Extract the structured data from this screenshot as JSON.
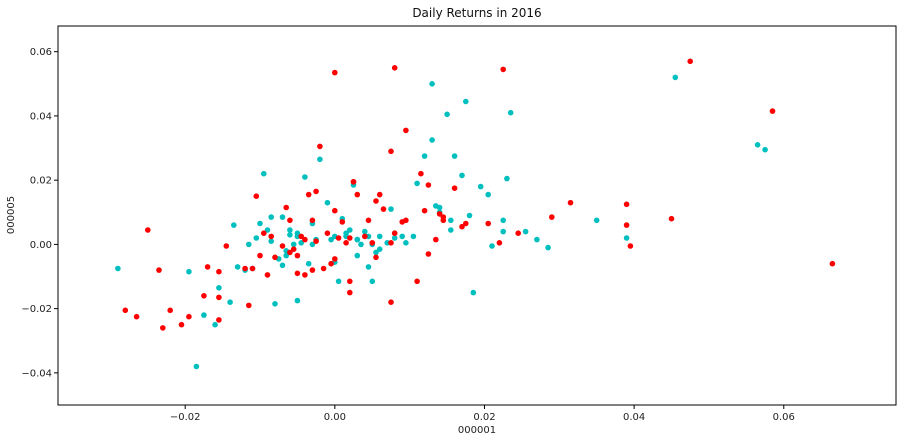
{
  "chart_data": {
    "type": "scatter",
    "title": "Daily Returns in 2016",
    "xlabel": "000001",
    "ylabel": "000005",
    "xlim": [
      -0.037,
      0.075
    ],
    "ylim": [
      -0.05,
      0.068
    ],
    "xticks": [
      -0.02,
      0.0,
      0.02,
      0.04,
      0.06
    ],
    "xtick_labels": [
      "−0.02",
      "0.00",
      "0.02",
      "0.04",
      "0.06"
    ],
    "yticks": [
      -0.04,
      -0.02,
      0.0,
      0.02,
      0.04,
      0.06
    ],
    "ytick_labels": [
      "−0.04",
      "−0.02",
      "0.00",
      "0.02",
      "0.04",
      "0.06"
    ],
    "grid": false,
    "series": [
      {
        "color": "#00bfbf",
        "x": [
          -0.029,
          -0.0195,
          -0.0185,
          -0.0175,
          -0.016,
          -0.0155,
          -0.014,
          -0.0135,
          -0.013,
          -0.012,
          -0.0115,
          -0.011,
          -0.0105,
          -0.01,
          -0.0095,
          -0.009,
          -0.0085,
          -0.008,
          -0.0075,
          -0.007,
          -0.007,
          -0.0065,
          -0.006,
          -0.0055,
          -0.005,
          -0.005,
          -0.0045,
          -0.004,
          -0.0035,
          -0.003,
          -0.0025,
          -0.002,
          -0.001,
          -0.0005,
          0.0,
          0.0,
          0.0005,
          0.001,
          0.0015,
          0.002,
          0.0025,
          0.003,
          0.003,
          0.0035,
          0.004,
          0.0045,
          0.005,
          0.005,
          0.0055,
          0.006,
          0.007,
          0.0075,
          0.008,
          0.009,
          0.0095,
          0.011,
          0.012,
          0.013,
          0.013,
          0.0135,
          0.014,
          0.015,
          0.0155,
          0.016,
          0.017,
          0.0175,
          0.018,
          0.0185,
          0.0195,
          0.021,
          0.0225,
          0.023,
          0.0235,
          0.0255,
          0.027,
          0.0285,
          0.035,
          0.039,
          0.0455,
          0.0565,
          0.0575,
          -0.006,
          -0.005,
          -0.0085,
          0.0045,
          -0.0065,
          0.0015,
          0.003,
          0.006,
          0.008,
          -0.003,
          0.0105,
          0.014,
          0.0155,
          0.0225,
          0.0205
        ],
        "y": [
          -0.0075,
          -0.0085,
          -0.038,
          -0.022,
          -0.025,
          -0.0135,
          -0.018,
          0.006,
          -0.007,
          -0.008,
          0.0,
          -0.0075,
          0.002,
          0.0065,
          0.022,
          0.0045,
          0.001,
          -0.0185,
          -0.0045,
          0.0085,
          -0.0065,
          -0.002,
          0.003,
          0.0,
          -0.0175,
          0.0025,
          0.0005,
          0.021,
          -0.006,
          0.0,
          0.0015,
          0.0265,
          0.013,
          0.0015,
          0.0025,
          -0.0055,
          -0.0115,
          0.008,
          0.0035,
          0.0045,
          0.0185,
          0.0015,
          -0.0035,
          0.0,
          0.004,
          -0.007,
          0.0,
          -0.0115,
          -0.0025,
          0.0025,
          0.0005,
          0.011,
          0.0035,
          0.0025,
          0.0005,
          0.019,
          0.0275,
          0.05,
          0.0325,
          0.012,
          0.01,
          0.0405,
          0.0045,
          0.0275,
          0.0215,
          0.0445,
          0.009,
          -0.015,
          0.018,
          -0.0005,
          0.0075,
          0.0205,
          0.041,
          0.004,
          0.0015,
          -0.001,
          0.0075,
          0.002,
          0.052,
          0.031,
          0.0295,
          0.0045,
          0.0035,
          0.0085,
          0.0025,
          -0.0035,
          0.0025,
          0.0015,
          -0.0015,
          0.002,
          0.0065,
          0.0025,
          0.0115,
          0.0075,
          0.004,
          0.0155
        ]
      },
      {
        "color": "#ff0000",
        "x": [
          -0.028,
          -0.0265,
          -0.025,
          -0.0235,
          -0.023,
          -0.022,
          -0.0205,
          -0.0195,
          -0.0175,
          -0.017,
          -0.0155,
          -0.0155,
          -0.0155,
          -0.0145,
          -0.012,
          -0.0115,
          -0.011,
          -0.0105,
          -0.01,
          -0.0095,
          -0.009,
          -0.0085,
          -0.008,
          -0.007,
          -0.0065,
          -0.006,
          -0.006,
          -0.0055,
          -0.005,
          -0.005,
          -0.0045,
          -0.004,
          -0.004,
          -0.0035,
          -0.003,
          -0.003,
          -0.0025,
          -0.002,
          -0.0015,
          -0.001,
          -0.0005,
          0.0,
          0.0,
          0.0005,
          0.001,
          0.0015,
          0.002,
          0.002,
          0.0025,
          0.003,
          0.004,
          0.0045,
          0.005,
          0.0055,
          0.006,
          0.0065,
          0.0075,
          0.008,
          0.009,
          0.0095,
          0.011,
          0.0115,
          0.012,
          0.0125,
          0.0135,
          0.014,
          0.0145,
          0.016,
          0.017,
          0.0175,
          0.0205,
          0.022,
          0.0225,
          0.0245,
          0.029,
          0.0315,
          0.039,
          0.039,
          0.0395,
          0.045,
          0.0475,
          0.0585,
          0.0665,
          0.0,
          0.008,
          0.0075,
          -0.0025,
          0.0025,
          0.002,
          0.0055,
          0.0075,
          0.0125,
          0.0145,
          0.0095
        ],
        "y": [
          -0.0205,
          -0.0225,
          0.0045,
          -0.008,
          -0.026,
          -0.0205,
          -0.025,
          -0.0225,
          -0.016,
          -0.007,
          -0.0085,
          -0.0165,
          -0.0235,
          -0.0005,
          -0.0075,
          -0.019,
          -0.0075,
          0.015,
          -0.0035,
          0.0035,
          -0.0095,
          0.0025,
          -0.004,
          -0.0005,
          0.0115,
          -0.0025,
          0.0075,
          -0.0015,
          -0.0035,
          -0.009,
          0.0025,
          0.0015,
          -0.0095,
          0.0155,
          0.0075,
          -0.008,
          0.001,
          0.0305,
          -0.0075,
          0.0035,
          -0.006,
          0.0105,
          -0.0045,
          0.002,
          0.007,
          0.0005,
          -0.015,
          -0.0115,
          0.0195,
          0.0155,
          0.0025,
          0.0075,
          0.0005,
          0.0135,
          0.0155,
          0.011,
          0.029,
          0.0035,
          0.007,
          0.0355,
          -0.0115,
          0.022,
          0.0105,
          -0.003,
          0.0015,
          0.0095,
          0.0075,
          0.0175,
          0.0055,
          0.0065,
          0.0065,
          0.0005,
          0.0545,
          0.0035,
          0.0085,
          0.013,
          0.006,
          0.0125,
          -0.0005,
          0.008,
          0.057,
          0.0415,
          -0.006,
          0.0535,
          0.055,
          -0.018,
          0.0165,
          0.0195,
          0.002,
          -0.004,
          0.0005,
          0.0185,
          0.0085,
          0.0075
        ]
      }
    ]
  }
}
